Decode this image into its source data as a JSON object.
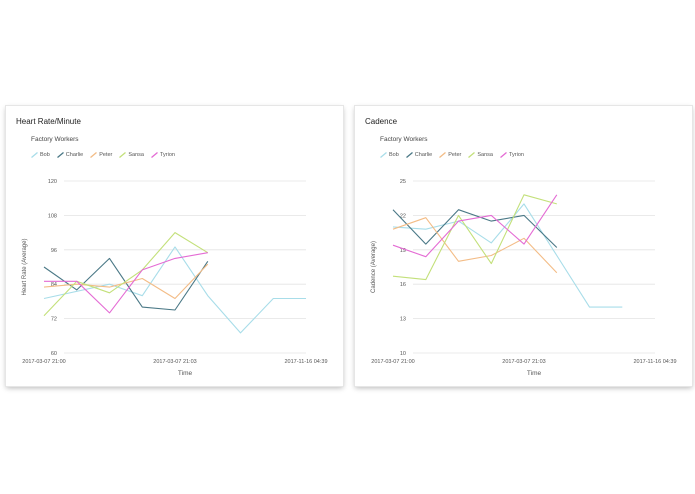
{
  "palette": {
    "Bob": "#a8dde9",
    "Charlie": "#4a7886",
    "Peter": "#f3bc86",
    "Sansa": "#c3e07a",
    "Tyrion": "#e46bd4"
  },
  "legend_order": [
    "Bob",
    "Charlie",
    "Peter",
    "Sansa",
    "Tyrion"
  ],
  "chart_data": [
    {
      "type": "line",
      "title": "Heart Rate/Minute",
      "subtitle": "Factory Workers",
      "xlabel": "Time",
      "ylabel": "Heart Rate (Average)",
      "ylim": [
        60,
        120
      ],
      "yticks": [
        60,
        72,
        84,
        96,
        108,
        120
      ],
      "xticks": [
        "2017-03-07 21:00",
        "2017-03-07 21:03",
        "2017-11-16 04:39"
      ],
      "grid": true,
      "legend": "top-left",
      "series": [
        {
          "name": "Bob",
          "points": [
            [
              0,
              79
            ],
            [
              2,
              84
            ],
            [
              3,
              80
            ],
            [
              4,
              97
            ],
            [
              5,
              80
            ],
            [
              6,
              67
            ],
            [
              7,
              79
            ],
            [
              8,
              79
            ]
          ]
        },
        {
          "name": "Charlie",
          "points": [
            [
              0,
              90
            ],
            [
              1,
              82
            ],
            [
              2,
              93
            ],
            [
              3,
              76
            ],
            [
              4,
              75
            ],
            [
              5,
              92
            ]
          ]
        },
        {
          "name": "Peter",
          "points": [
            [
              0,
              83
            ],
            [
              1,
              84
            ],
            [
              2,
              83
            ],
            [
              3,
              86
            ],
            [
              4,
              79
            ],
            [
              5,
              91
            ]
          ]
        },
        {
          "name": "Sansa",
          "points": [
            [
              0,
              73
            ],
            [
              1,
              85
            ],
            [
              2,
              81
            ],
            [
              3,
              89
            ],
            [
              4,
              102
            ],
            [
              5,
              95
            ]
          ]
        },
        {
          "name": "Tyrion",
          "points": [
            [
              0,
              85
            ],
            [
              1,
              85
            ],
            [
              2,
              74
            ],
            [
              3,
              89
            ],
            [
              4,
              93
            ],
            [
              5,
              95
            ]
          ]
        }
      ]
    },
    {
      "type": "line",
      "title": "Cadence",
      "subtitle": "Factory Workers",
      "xlabel": "Time",
      "ylabel": "Cadence (Average)",
      "ylim": [
        10,
        25
      ],
      "yticks": [
        10,
        13,
        16,
        19,
        22,
        25
      ],
      "xticks": [
        "2017-03-07 21:00",
        "2017-03-07 21:03",
        "2017-11-16 04:39"
      ],
      "grid": true,
      "legend": "top-left",
      "series": [
        {
          "name": "Bob",
          "points": [
            [
              0,
              21
            ],
            [
              1,
              20.8
            ],
            [
              2,
              21.5
            ],
            [
              3,
              19.6
            ],
            [
              4,
              23
            ],
            [
              5,
              18.5
            ],
            [
              6,
              14
            ],
            [
              7,
              14
            ]
          ]
        },
        {
          "name": "Charlie",
          "points": [
            [
              0,
              22.5
            ],
            [
              1,
              19.5
            ],
            [
              2,
              22.5
            ],
            [
              3,
              21.5
            ],
            [
              4,
              22
            ],
            [
              5,
              19.2
            ]
          ]
        },
        {
          "name": "Peter",
          "points": [
            [
              0,
              20.8
            ],
            [
              1,
              21.8
            ],
            [
              2,
              18
            ],
            [
              3,
              18.5
            ],
            [
              4,
              20
            ],
            [
              5,
              17
            ]
          ]
        },
        {
          "name": "Sansa",
          "points": [
            [
              0,
              16.7
            ],
            [
              1,
              16.4
            ],
            [
              2,
              22
            ],
            [
              3,
              17.8
            ],
            [
              4,
              23.8
            ],
            [
              5,
              23
            ]
          ]
        },
        {
          "name": "Tyrion",
          "points": [
            [
              0,
              19.4
            ],
            [
              1,
              18.4
            ],
            [
              2,
              21.5
            ],
            [
              3,
              22
            ],
            [
              4,
              19.5
            ],
            [
              5,
              23.8
            ]
          ]
        }
      ]
    }
  ]
}
